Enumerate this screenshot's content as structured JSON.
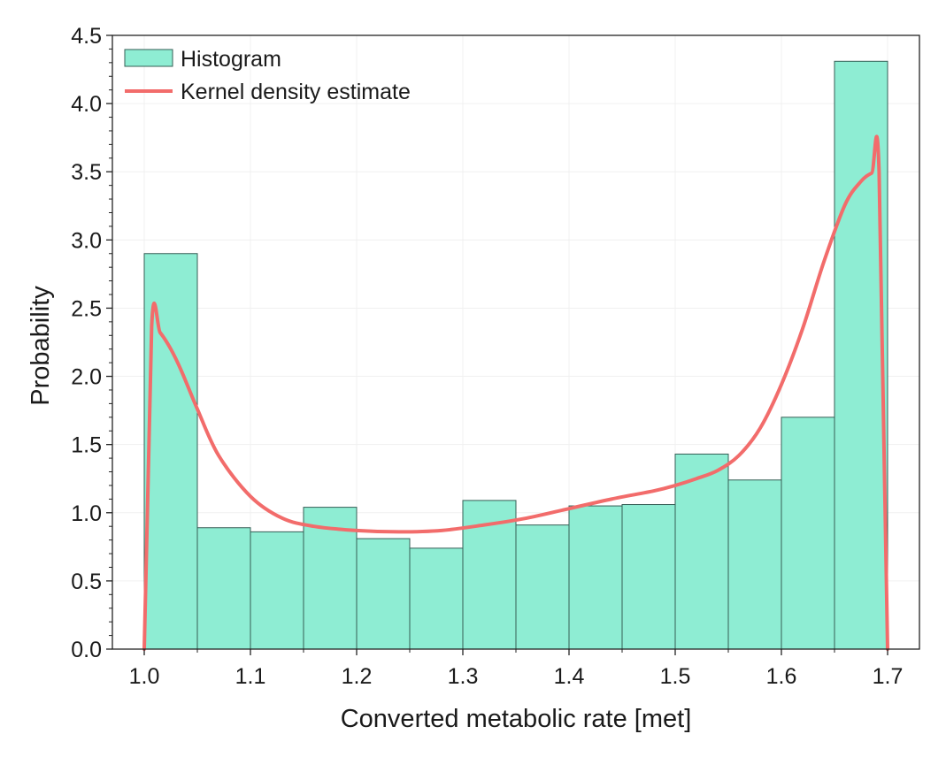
{
  "chart_data": {
    "type": "bar",
    "xlabel": "Converted metabolic rate [met]",
    "ylabel": "Probability",
    "xlim": [
      0.97,
      1.73
    ],
    "ylim": [
      0,
      4.5
    ],
    "xticks": [
      "1.0",
      "1.1",
      "1.2",
      "1.3",
      "1.4",
      "1.5",
      "1.6",
      "1.7"
    ],
    "yticks": [
      "0.0",
      "0.5",
      "1.0",
      "1.5",
      "2.0",
      "2.5",
      "3.0",
      "3.5",
      "4.0",
      "4.5"
    ],
    "grid": true,
    "legend_position": "top-left",
    "histogram": {
      "name": "Histogram",
      "color": "#8eedd3",
      "edge_color": "#355e55",
      "bin_edges": [
        1.0,
        1.05,
        1.1,
        1.15,
        1.2,
        1.25,
        1.3,
        1.35,
        1.4,
        1.45,
        1.5,
        1.55,
        1.6,
        1.65,
        1.7
      ],
      "values": [
        2.9,
        0.89,
        0.86,
        1.04,
        0.81,
        0.74,
        1.09,
        0.91,
        1.05,
        1.06,
        1.43,
        1.24,
        1.7,
        4.31
      ]
    },
    "kde": {
      "name": "Kernel density estimate",
      "color": "#f26c6b",
      "x": [
        1.0,
        1.007,
        1.015,
        1.025,
        1.035,
        1.05,
        1.07,
        1.1,
        1.13,
        1.16,
        1.2,
        1.24,
        1.28,
        1.32,
        1.36,
        1.4,
        1.44,
        1.48,
        1.5,
        1.52,
        1.54,
        1.56,
        1.58,
        1.6,
        1.62,
        1.64,
        1.66,
        1.675,
        1.685,
        1.692,
        1.7
      ],
      "y": [
        0.0,
        2.37,
        2.32,
        2.2,
        2.04,
        1.76,
        1.42,
        1.12,
        0.96,
        0.9,
        0.87,
        0.86,
        0.87,
        0.91,
        0.96,
        1.03,
        1.1,
        1.16,
        1.2,
        1.25,
        1.31,
        1.42,
        1.62,
        1.94,
        2.35,
        2.84,
        3.26,
        3.43,
        3.49,
        3.5,
        0.0
      ]
    }
  }
}
